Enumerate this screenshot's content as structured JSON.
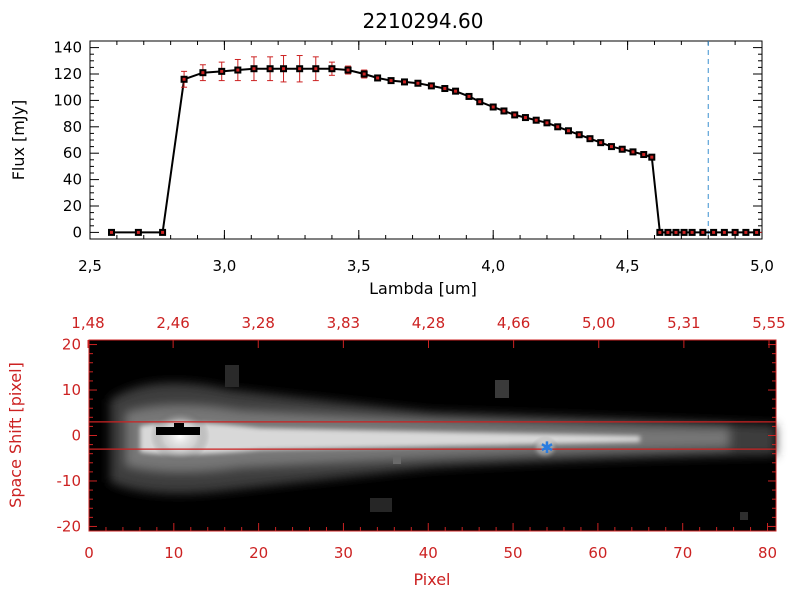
{
  "chart_data": [
    {
      "type": "line",
      "title": "2210294.60",
      "xlabel": "Lambda [um]",
      "ylabel": "Flux [mJy]",
      "xlim": [
        2.5,
        5.0
      ],
      "ylim": [
        -5,
        145
      ],
      "x_ticks": [
        "2.5",
        "3.0",
        "3.5",
        "4.0",
        "4.5",
        "5.0"
      ],
      "y_ticks": [
        "0",
        "20",
        "40",
        "60",
        "80",
        "100",
        "120",
        "140"
      ],
      "reference_line_x": 4.8,
      "series": [
        {
          "name": "Flux",
          "x": [
            2.58,
            2.68,
            2.77,
            2.85,
            2.92,
            2.99,
            3.05,
            3.11,
            3.17,
            3.22,
            3.28,
            3.34,
            3.4,
            3.46,
            3.52,
            3.57,
            3.62,
            3.67,
            3.72,
            3.77,
            3.82,
            3.86,
            3.91,
            3.95,
            4.0,
            4.04,
            4.08,
            4.12,
            4.16,
            4.2,
            4.24,
            4.28,
            4.32,
            4.36,
            4.4,
            4.44,
            4.48,
            4.52,
            4.56,
            4.59,
            4.62,
            4.65,
            4.68,
            4.71,
            4.74,
            4.78,
            4.82,
            4.86,
            4.9,
            4.94,
            4.98
          ],
          "y": [
            0,
            0,
            0,
            116,
            121,
            122,
            123,
            124,
            124,
            124,
            124,
            124,
            124,
            123,
            120,
            117,
            115,
            114,
            113,
            111,
            109,
            107,
            103,
            99,
            95,
            92,
            89,
            87,
            85,
            83,
            80,
            77,
            74,
            71,
            68,
            65,
            63,
            61,
            59,
            57,
            0,
            0,
            0,
            0,
            0,
            0,
            0,
            0,
            0,
            0,
            0
          ],
          "errors": [
            0,
            0,
            0,
            6,
            6,
            7,
            8,
            9,
            9,
            10,
            10,
            9,
            5,
            3,
            3,
            2,
            2,
            2,
            2,
            2,
            2,
            2,
            2,
            2,
            2,
            2,
            2,
            2,
            2,
            2,
            2,
            2,
            2,
            2,
            2,
            2,
            2,
            2,
            2,
            2,
            0,
            0,
            0,
            0,
            0,
            0,
            0,
            0,
            0,
            0,
            0
          ]
        }
      ]
    },
    {
      "type": "heatmap",
      "title": "",
      "xlabel": "Pixel",
      "ylabel": "Space Shift [pixel]",
      "xlim": [
        0,
        81
      ],
      "ylim": [
        -21,
        21
      ],
      "x_ticks": [
        "0",
        "10",
        "20",
        "30",
        "40",
        "50",
        "60",
        "70",
        "80"
      ],
      "y_ticks": [
        "-20",
        "-10",
        "0",
        "10",
        "20"
      ],
      "top_axis_ticks": [
        "1.48",
        "2.46",
        "3.28",
        "3.83",
        "4.28",
        "4.66",
        "5.00",
        "5.31",
        "5.55"
      ],
      "aperture_lines": [
        3,
        -3
      ],
      "marker": {
        "symbol": "✱",
        "pixel": 54,
        "shift": -2.5,
        "color": "#2a7ce0"
      }
    }
  ]
}
